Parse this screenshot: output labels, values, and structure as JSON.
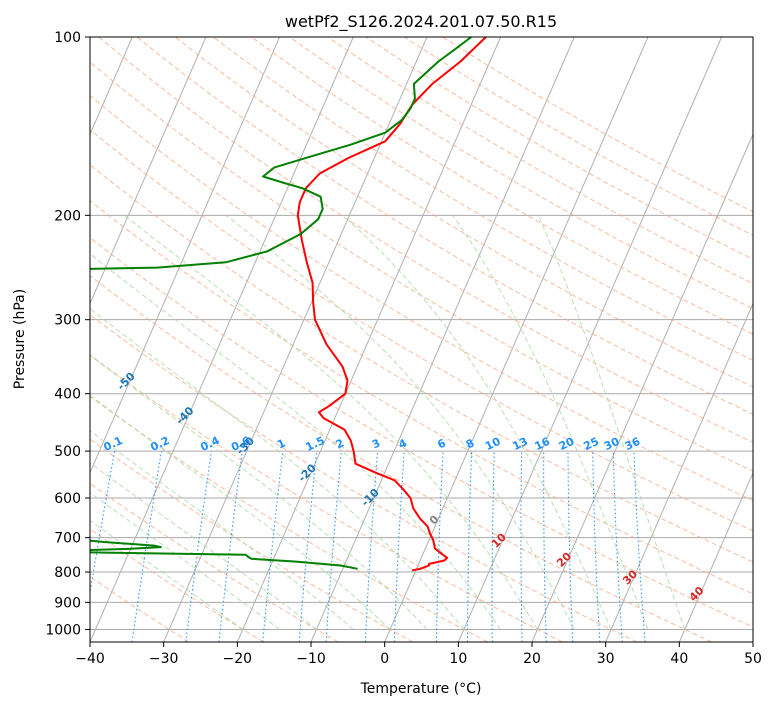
{
  "chart_data": {
    "type": "line",
    "subtype": "skew-t log-p diagram",
    "title": "wetPf2_S126.2024.201.07.50.R15",
    "xlabel": "Temperature (°C)",
    "ylabel": "Pressure (hPa)",
    "xlim": [
      -40,
      50
    ],
    "ylim": [
      1050,
      100
    ],
    "y_scale": "log",
    "x_ticks": [
      -40,
      -30,
      -20,
      -10,
      0,
      10,
      20,
      30,
      40,
      50
    ],
    "y_ticks": [
      100,
      200,
      300,
      400,
      500,
      600,
      700,
      800,
      900,
      1000
    ],
    "grid": true,
    "series": [
      {
        "key": "temperature",
        "color": "#ff0000",
        "points": [
          [
            -22.0,
            100
          ],
          [
            -24.0,
            110
          ],
          [
            -26.5,
            120
          ],
          [
            -28.0,
            130
          ],
          [
            -28.5,
            140
          ],
          [
            -29.5,
            150
          ],
          [
            -33.5,
            160
          ],
          [
            -36.5,
            170
          ],
          [
            -37.5,
            180
          ],
          [
            -37.5,
            190
          ],
          [
            -37.0,
            200
          ],
          [
            -35.0,
            220
          ],
          [
            -33.0,
            240
          ],
          [
            -31.0,
            260
          ],
          [
            -29.8,
            280
          ],
          [
            -28.5,
            300
          ],
          [
            -25.5,
            330
          ],
          [
            -22.0,
            360
          ],
          [
            -20.5,
            380
          ],
          [
            -20.0,
            400
          ],
          [
            -21.5,
            420
          ],
          [
            -22.5,
            430
          ],
          [
            -21.5,
            440
          ],
          [
            -18.0,
            460
          ],
          [
            -16.5,
            480
          ],
          [
            -15.5,
            500
          ],
          [
            -14.5,
            525
          ],
          [
            -11.0,
            545
          ],
          [
            -8.2,
            560
          ],
          [
            -6.5,
            580
          ],
          [
            -5.0,
            600
          ],
          [
            -4.0,
            625
          ],
          [
            -2.5,
            650
          ],
          [
            -1.0,
            670
          ],
          [
            -0.2,
            690
          ],
          [
            0.5,
            705
          ],
          [
            1.0,
            720
          ],
          [
            1.3,
            730
          ],
          [
            2.5,
            745
          ],
          [
            3.5,
            757
          ],
          [
            3.3,
            765
          ],
          [
            2.0,
            772
          ],
          [
            1.4,
            775
          ],
          [
            1.5,
            780
          ],
          [
            1.0,
            785
          ],
          [
            0.5,
            790
          ],
          [
            -0.5,
            795
          ]
        ]
      },
      {
        "key": "dewpoint",
        "color": "#008000",
        "points": [
          [
            -24.0,
            100
          ],
          [
            -25.5,
            105
          ],
          [
            -27.0,
            110
          ],
          [
            -29.0,
            120
          ],
          [
            -28.0,
            127
          ],
          [
            -28.0,
            132
          ],
          [
            -28.5,
            138
          ],
          [
            -30.0,
            145
          ],
          [
            -34.0,
            152
          ],
          [
            -38.0,
            158
          ],
          [
            -43.0,
            166
          ],
          [
            -44.0,
            172
          ],
          [
            -41.0,
            176
          ],
          [
            -38.0,
            180
          ],
          [
            -35.0,
            186
          ],
          [
            -34.0,
            195
          ],
          [
            -34.0,
            203
          ],
          [
            -35.5,
            215
          ],
          [
            -39.0,
            230
          ],
          [
            -44.0,
            240
          ],
          [
            -53.0,
            245
          ],
          [
            -68.0,
            247
          ],
          [
            -71.0,
            252
          ],
          [
            -74.0,
            263
          ],
          [
            -76.5,
            280
          ],
          [
            -80.5,
            300
          ],
          [
            -84.0,
            330
          ],
          [
            -87.0,
            360
          ],
          [
            -89.0,
            380
          ],
          [
            -88.0,
            390
          ],
          [
            -85.0,
            410
          ],
          [
            -84.5,
            425
          ],
          [
            -86.0,
            445
          ],
          [
            -88.5,
            460
          ],
          [
            -91.0,
            480
          ],
          [
            -70.0,
            592
          ],
          [
            -62.0,
            600
          ],
          [
            -61.5,
            603
          ],
          [
            -62.5,
            607
          ],
          [
            -70.0,
            615
          ],
          [
            -50.0,
            700
          ],
          [
            -44.0,
            712
          ],
          [
            -37.0,
            722
          ],
          [
            -36.0,
            726
          ],
          [
            -40.0,
            731
          ],
          [
            -50.0,
            737
          ],
          [
            -46.0,
            741
          ],
          [
            -40.0,
            743
          ],
          [
            -24.0,
            748
          ],
          [
            -23.5,
            755
          ],
          [
            -23.0,
            760
          ],
          [
            -17.0,
            768
          ],
          [
            -10.5,
            780
          ],
          [
            -8.0,
            790
          ]
        ]
      }
    ],
    "annotations": {
      "dry_adiabat_labels": [
        "-100",
        "-90",
        "-80",
        "-70",
        "-60",
        "-50",
        "-40",
        "-30",
        "-20",
        "-10",
        "0",
        "10",
        "20",
        "30",
        "40"
      ],
      "mixing_ratio_labels": [
        "0.1",
        "0.2",
        "0.4",
        "0.6",
        "1",
        "1.5",
        "2",
        "3",
        "4",
        "6",
        "8",
        "10",
        "13",
        "16",
        "20",
        "25",
        "30",
        "36"
      ],
      "dry_adiabat_colors": {
        "cold": "#1f77b4",
        "zero": "#808080",
        "warm": "#d62728"
      },
      "mixing_ratio_color": "#1e90ff"
    }
  }
}
